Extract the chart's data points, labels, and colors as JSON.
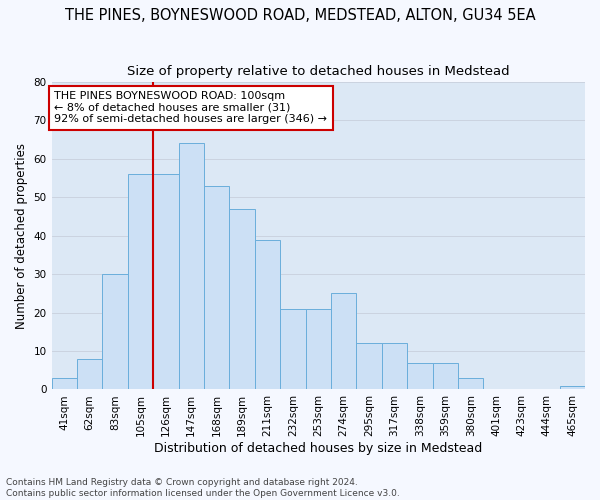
{
  "title": "THE PINES, BOYNESWOOD ROAD, MEDSTEAD, ALTON, GU34 5EA",
  "subtitle": "Size of property relative to detached houses in Medstead",
  "xlabel": "Distribution of detached houses by size in Medstead",
  "ylabel": "Number of detached properties",
  "bin_labels": [
    "41sqm",
    "62sqm",
    "83sqm",
    "105sqm",
    "126sqm",
    "147sqm",
    "168sqm",
    "189sqm",
    "211sqm",
    "232sqm",
    "253sqm",
    "274sqm",
    "295sqm",
    "317sqm",
    "338sqm",
    "359sqm",
    "380sqm",
    "401sqm",
    "423sqm",
    "444sqm",
    "465sqm"
  ],
  "bar_values": [
    3,
    8,
    30,
    56,
    56,
    64,
    53,
    47,
    39,
    21,
    21,
    25,
    12,
    12,
    7,
    7,
    3,
    0,
    0,
    0,
    1
  ],
  "bar_color": "#cce0f5",
  "bar_edge_color": "#6aaedb",
  "red_line_x": 3.5,
  "annotation_text": "THE PINES BOYNESWOOD ROAD: 100sqm\n← 8% of detached houses are smaller (31)\n92% of semi-detached houses are larger (346) →",
  "annotation_box_color": "#ffffff",
  "annotation_box_edge": "#cc0000",
  "red_line_color": "#cc0000",
  "ylim": [
    0,
    80
  ],
  "yticks": [
    0,
    10,
    20,
    30,
    40,
    50,
    60,
    70,
    80
  ],
  "grid_color": "#c8d0dc",
  "bg_color": "#dce8f5",
  "fig_bg_color": "#f5f8ff",
  "footer": "Contains HM Land Registry data © Crown copyright and database right 2024.\nContains public sector information licensed under the Open Government Licence v3.0.",
  "title_fontsize": 10.5,
  "subtitle_fontsize": 9.5,
  "xlabel_fontsize": 9,
  "ylabel_fontsize": 8.5,
  "tick_fontsize": 7.5,
  "annotation_fontsize": 8,
  "footer_fontsize": 6.5
}
